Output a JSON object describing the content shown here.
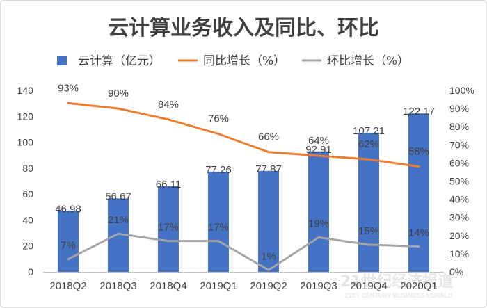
{
  "chart_data": {
    "type": "bar",
    "title": "云计算业务收入及同比、环比",
    "categories": [
      "2018Q2",
      "2018Q3",
      "2018Q4",
      "2019Q1",
      "2019Q2",
      "2019Q3",
      "2019Q4",
      "2020Q1"
    ],
    "series": [
      {
        "name": "云计算（亿元）",
        "type": "bar",
        "axis": "left",
        "color": "#4472C4",
        "values": [
          46.98,
          56.67,
          66.11,
          77.26,
          77.87,
          92.91,
          107.21,
          122.17
        ],
        "labels": [
          "46.98",
          "56.67",
          "66.11",
          "77.26",
          "77.87",
          "92.91",
          "107.21",
          "122.17"
        ]
      },
      {
        "name": "同比增长（%）",
        "type": "line",
        "axis": "right",
        "color": "#ED7D31",
        "values": [
          93,
          90,
          84,
          76,
          66,
          64,
          62,
          58
        ],
        "labels": [
          "93%",
          "90%",
          "84%",
          "76%",
          "66%",
          "64%",
          "62%",
          "58%"
        ]
      },
      {
        "name": "环比增长（%）",
        "type": "line",
        "axis": "right",
        "color": "#A5A5A5",
        "values": [
          7,
          21,
          17,
          17,
          1,
          19,
          15,
          14
        ],
        "labels": [
          "7%",
          "21%",
          "17%",
          "17%",
          "1%",
          "19%",
          "15%",
          "14%"
        ]
      }
    ],
    "y_left": {
      "range": [
        0,
        140
      ],
      "ticks": [
        "0",
        "20",
        "40",
        "60",
        "80",
        "100",
        "120",
        "140"
      ]
    },
    "y_right": {
      "range": [
        0,
        100
      ],
      "ticks": [
        "0%",
        "10%",
        "20%",
        "30%",
        "40%",
        "50%",
        "60%",
        "70%",
        "80%",
        "90%",
        "100%"
      ]
    },
    "legend_position": "top",
    "grid": false
  },
  "watermark": {
    "main": "21世纪经济报道",
    "sub": "21ST CENTURY BUSINESS HERALD"
  }
}
